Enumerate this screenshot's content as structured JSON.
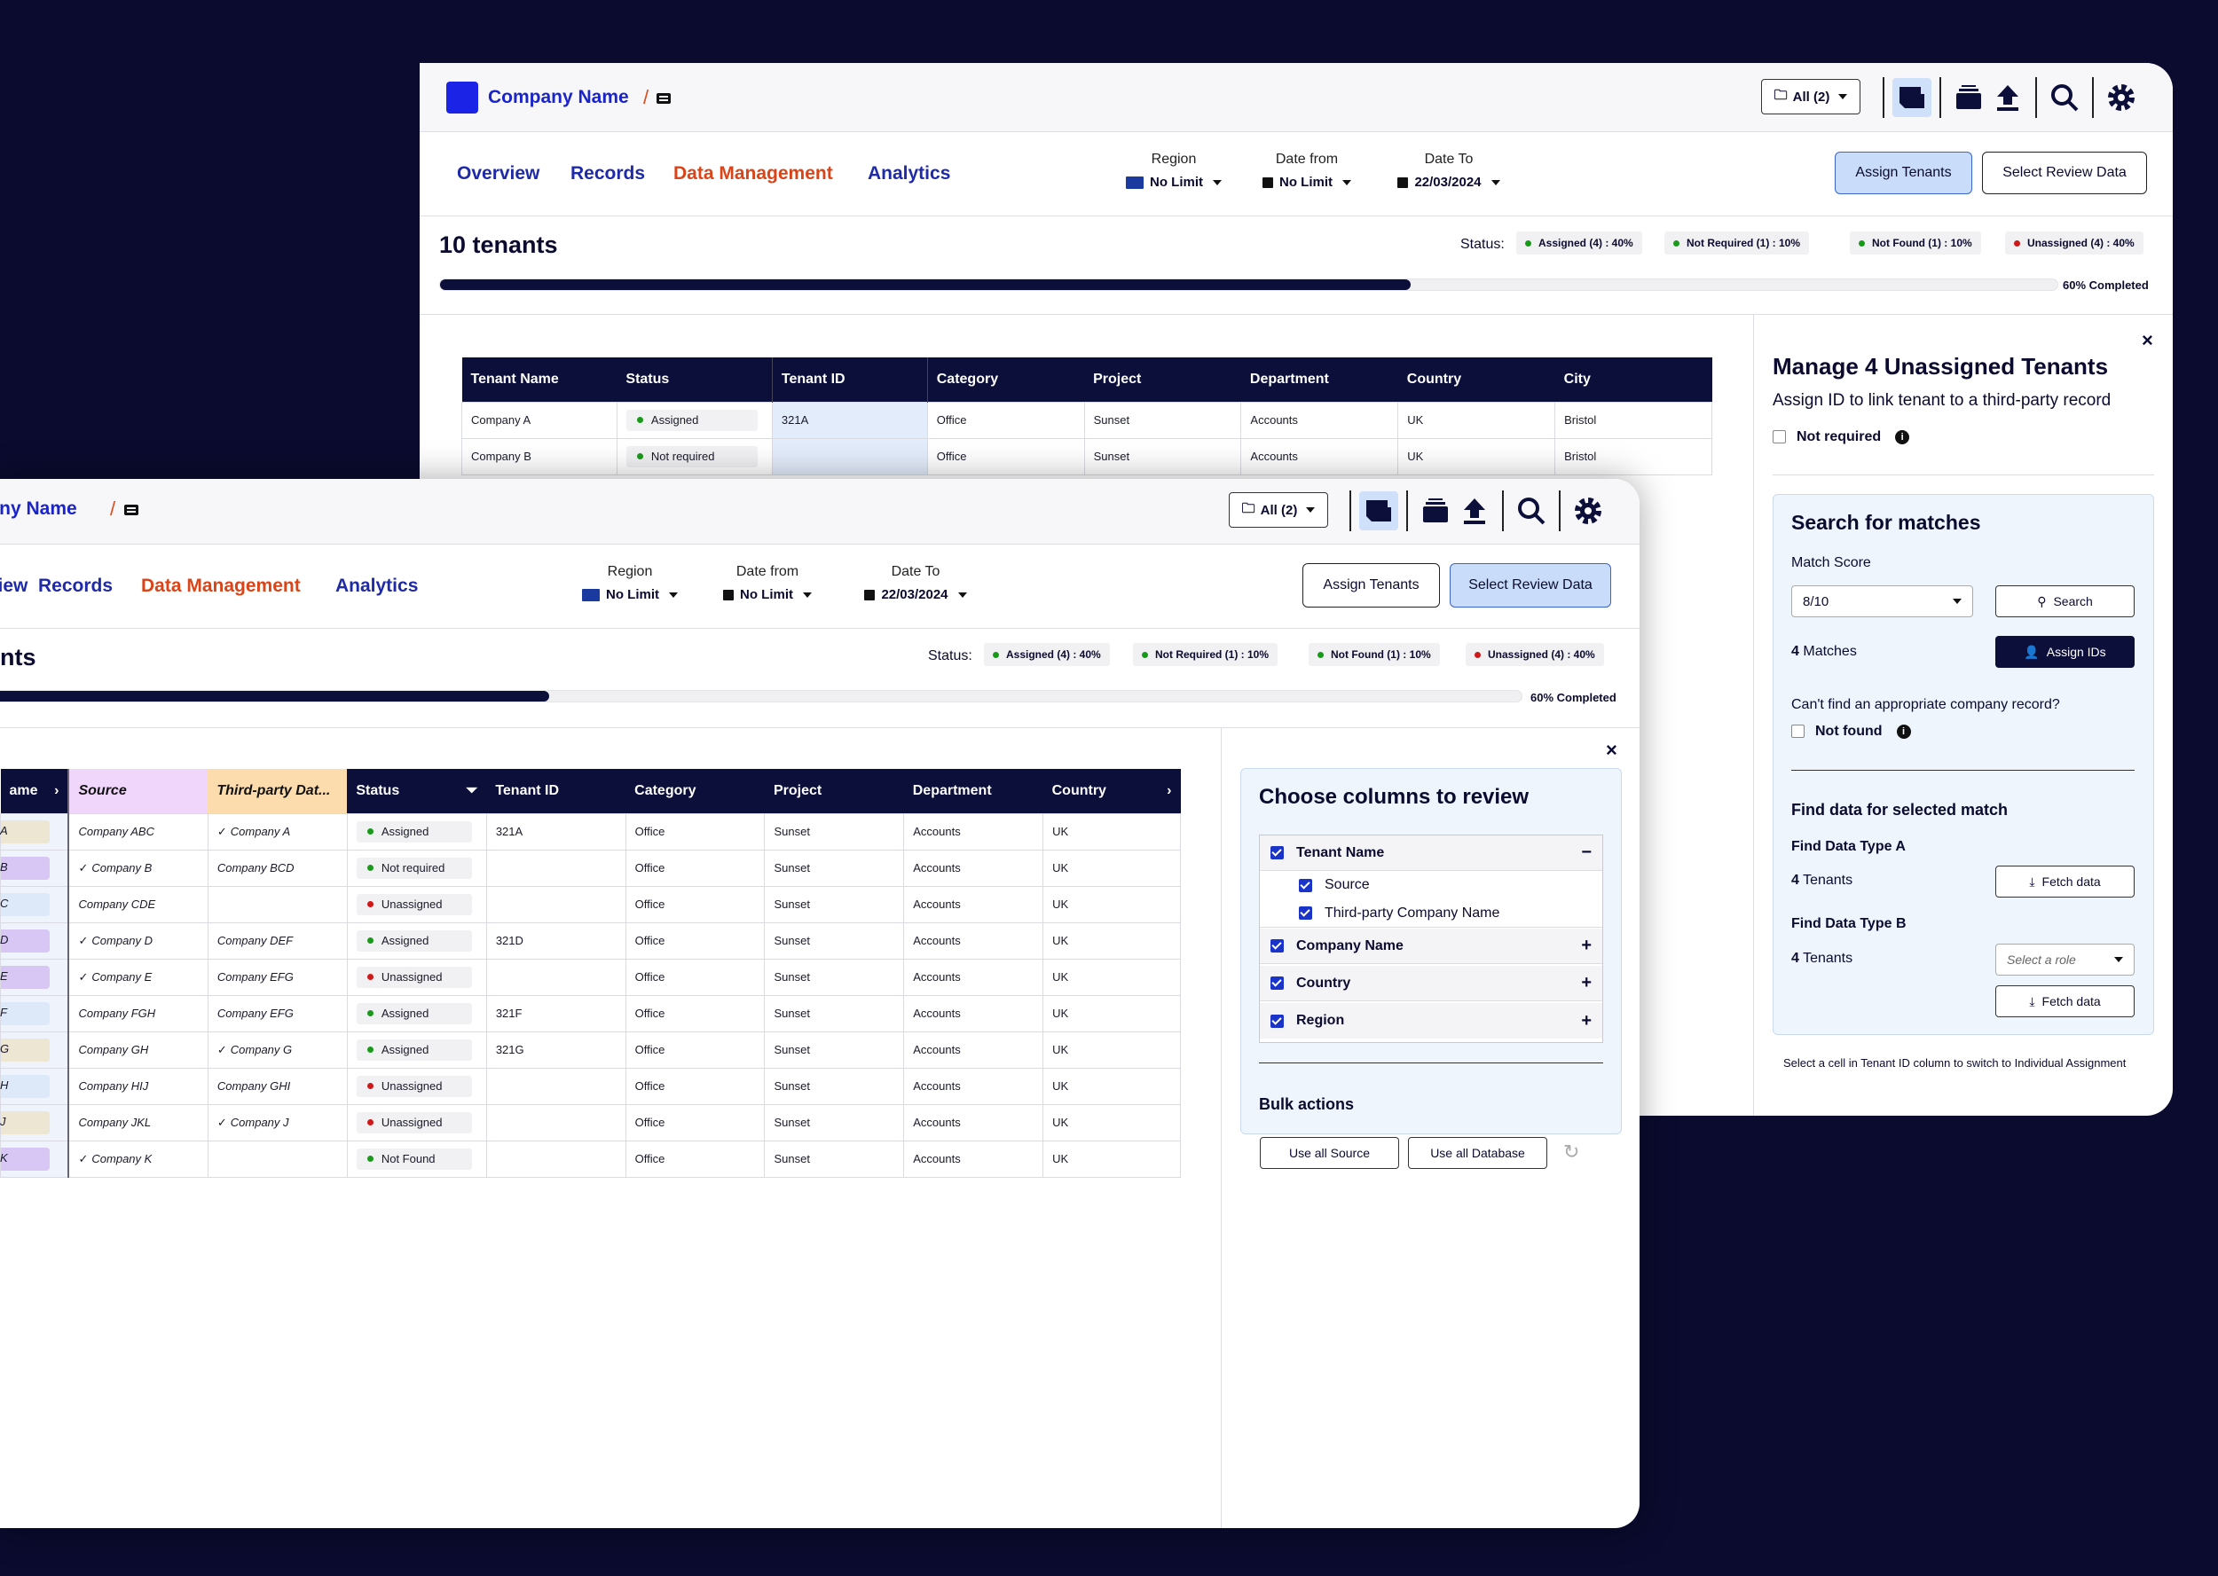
{
  "app": {
    "brand": "Company Name",
    "all_label": "All (2)"
  },
  "nav": {
    "items": [
      "Overview",
      "Records",
      "Data Management",
      "Analytics"
    ],
    "active": "Data Management"
  },
  "filters": {
    "region_label": "Region",
    "region_value": "No Limit",
    "date_from_label": "Date from",
    "date_from_value": "No Limit",
    "date_to_label": "Date To",
    "date_to_value": "22/03/2024"
  },
  "actions": {
    "assign": "Assign Tenants",
    "review": "Select Review Data"
  },
  "summary": {
    "count_title": "10 tenants",
    "count_title_cut": "nts",
    "status_label": "Status:",
    "assigned": "Assigned (4) : 40%",
    "not_required": "Not Required (1) : 10%",
    "not_found": "Not Found (1) : 10%",
    "unassigned": "Unassigned (4) : 40%",
    "progress": 0.6,
    "progress_label": "60% Completed"
  },
  "colors": {
    "navy": "#0b0f3a",
    "accent": "#1a24c8",
    "active": "#d94418",
    "assigned": "#1a9a1a",
    "unassigned": "#d01818"
  },
  "back_table": {
    "headers": [
      "Tenant Name",
      "Status",
      "Tenant ID",
      "Category",
      "Project",
      "Department",
      "Country",
      "City"
    ],
    "rows": [
      [
        "Company A",
        "Assigned",
        "321A",
        "Office",
        "Sunset",
        "Accounts",
        "UK",
        "Bristol"
      ],
      [
        "Company B",
        "Not required",
        "",
        "Office",
        "Sunset",
        "Accounts",
        "UK",
        "Bristol"
      ]
    ]
  },
  "assign_panel": {
    "title": "Manage 4 Unassigned Tenants",
    "subtitle": "Assign ID to link tenant to a third-party record",
    "not_required": "Not required",
    "search_title": "Search for matches",
    "match_score_label": "Match Score",
    "match_score_value": "8/10",
    "search_button": "Search",
    "matches_num": "4",
    "matches_label": "Matches",
    "assign_ids": "Assign IDs",
    "cant_find": "Can't find an appropriate company record?",
    "not_found": "Not found",
    "find_title": "Find data for selected match",
    "type_a": "Find Data Type A",
    "type_a_num": "4",
    "type_a_label": "Tenants",
    "fetch": "Fetch data",
    "type_b": "Find Data Type B",
    "type_b_num": "4",
    "type_b_label": "Tenants",
    "role_placeholder": "Select a role",
    "footer": "Select a cell in Tenant ID column to switch to Individual Assignment"
  },
  "front_table": {
    "headers": {
      "name": "ame",
      "source": "Source",
      "third_party": "Third-party Dat...",
      "status": "Status",
      "tenant_id": "Tenant ID",
      "category": "Category",
      "project": "Project",
      "department": "Department",
      "country": "Country"
    },
    "rows": [
      {
        "name": "A",
        "chip": "#ece6d2",
        "source": "Company ABC",
        "third": "Company A",
        "third_check": true,
        "status": "Assigned",
        "dot": "#1a9a1a",
        "tid": "321A"
      },
      {
        "name": "B",
        "chip": "#d8c6f4",
        "source": "Company B",
        "source_check": true,
        "third": "Company BCD",
        "status": "Not required",
        "dot": "#1a9a1a",
        "tid": ""
      },
      {
        "name": "C",
        "chip": "#dde8f8",
        "source": "Company CDE",
        "third": "",
        "status": "Unassigned",
        "dot": "#d01818",
        "tid": ""
      },
      {
        "name": "D",
        "chip": "#d8c6f4",
        "source": "Company D",
        "source_check": true,
        "third": "Company DEF",
        "status": "Assigned",
        "dot": "#1a9a1a",
        "tid": "321D"
      },
      {
        "name": "E",
        "chip": "#d8c6f4",
        "source": "Company E",
        "source_check": true,
        "third": "Company EFG",
        "status": "Unassigned",
        "dot": "#d01818",
        "tid": ""
      },
      {
        "name": "F",
        "chip": "#dde8f8",
        "source": "Company FGH",
        "third": "Company EFG",
        "status": "Assigned",
        "dot": "#1a9a1a",
        "tid": "321F"
      },
      {
        "name": "G",
        "chip": "#ece6d2",
        "source": "Company GH",
        "third": "Company G",
        "third_check": true,
        "status": "Assigned",
        "dot": "#1a9a1a",
        "tid": "321G"
      },
      {
        "name": "H",
        "chip": "#dde8f8",
        "source": "Company HIJ",
        "third": "Company GHI",
        "status": "Unassigned",
        "dot": "#d01818",
        "tid": ""
      },
      {
        "name": "J",
        "chip": "#ece6d2",
        "source": "Company JKL",
        "third": "Company J",
        "third_check": true,
        "status": "Unassigned",
        "dot": "#d01818",
        "tid": ""
      },
      {
        "name": "K",
        "chip": "#d8c6f4",
        "source": "Company K",
        "source_check": true,
        "third": "",
        "status": "Not Found",
        "dot": "#1a9a1a",
        "tid": ""
      }
    ],
    "common": {
      "category": "Office",
      "project": "Sunset",
      "department": "Accounts",
      "country": "UK"
    }
  },
  "columns_panel": {
    "title": "Choose columns to review",
    "groups": [
      {
        "label": "Tenant Name",
        "sign": "−",
        "children": [
          "Source",
          "Third-party Company Name"
        ]
      },
      {
        "label": "Company Name",
        "sign": "+"
      },
      {
        "label": "Country",
        "sign": "+"
      },
      {
        "label": "Region",
        "sign": "+"
      }
    ],
    "bulk_title": "Bulk actions",
    "use_source": "Use all Source",
    "use_database": "Use all Database"
  }
}
